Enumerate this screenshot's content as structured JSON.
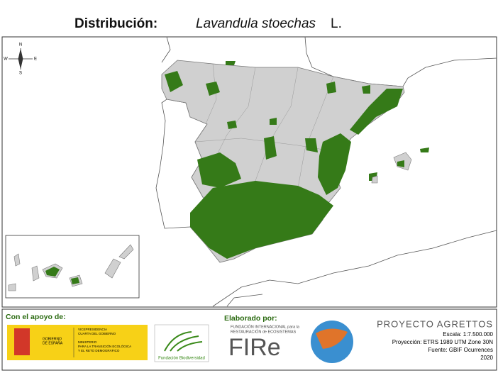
{
  "header": {
    "label": "Distribución:",
    "species": "Lavandula stoechas",
    "author": "L."
  },
  "compass": {
    "n": "N",
    "s": "S",
    "e": "E",
    "w": "W"
  },
  "footer": {
    "support_label": "Con el apoyo de:",
    "gobierno": [
      "GOBIERNO",
      "DE ESPAÑA"
    ],
    "vicepresidencia": [
      "VICEPRESIDENCIA",
      "CUARTA DEL GOBIERNO"
    ],
    "ministerio": [
      "MINISTERIO",
      "PARA LA TRANSICIÓN ECOLÓGICA",
      "Y EL RETO DEMOGRÁFICO"
    ],
    "fundacion": "Fundación Biodiversidad",
    "elaborado": "Elaborado por:",
    "fire_org": [
      "FUNDACIÓN INTERNACIONAL para la",
      "RESTAURACIÓN de ECOSISTEMAS"
    ],
    "fire": "FIRe",
    "proyecto": "PROYECTO AGRETTOS",
    "escala": "Escala: 1:7.500.000",
    "proyeccion": "Proyección: ETRS 1989 UTM Zone 30N",
    "fuente": "Fuente: GBIF Ocurrences",
    "year": "2020"
  }
}
